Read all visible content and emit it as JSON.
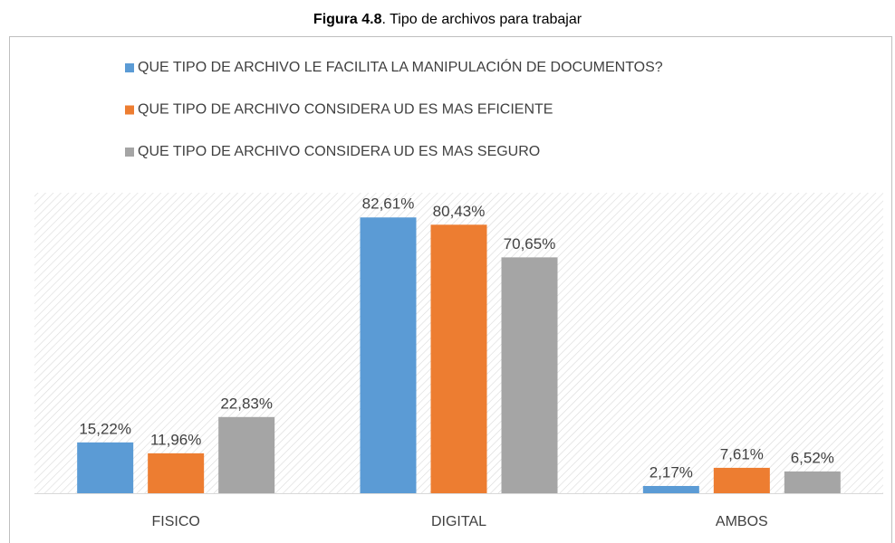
{
  "chart_data": {
    "type": "bar",
    "title_prefix": "Figura 4.8",
    "title": ". Tipo de archivos para trabajar",
    "categories": [
      "FISICO",
      "DIGITAL",
      "AMBOS"
    ],
    "series": [
      {
        "name": "QUE TIPO DE ARCHIVO LE FACILITA LA MANIPULACIÓN DE DOCUMENTOS?",
        "color": "#5b9bd5",
        "values": [
          15.22,
          82.61,
          2.17
        ],
        "value_labels": [
          "15,22%",
          "82,61%",
          "2,17%"
        ]
      },
      {
        "name": "QUE TIPO DE ARCHIVO CONSIDERA UD ES MAS EFICIENTE",
        "color": "#ed7d31",
        "values": [
          11.96,
          80.43,
          7.61
        ],
        "value_labels": [
          "11,96%",
          "80,43%",
          "7,61%"
        ]
      },
      {
        "name": "QUE TIPO DE ARCHIVO CONSIDERA UD ES MAS SEGURO",
        "color": "#a5a5a5",
        "values": [
          22.83,
          70.65,
          6.52
        ],
        "value_labels": [
          "22,83%",
          "70,65%",
          "6,52%"
        ]
      }
    ],
    "ylim": [
      0,
      90
    ],
    "legend": "top"
  }
}
